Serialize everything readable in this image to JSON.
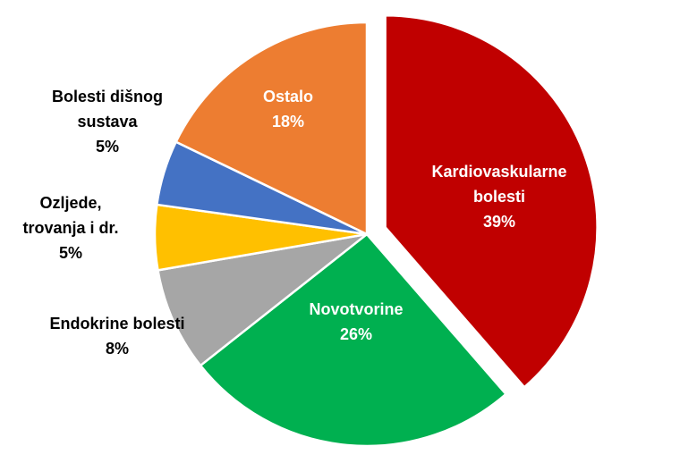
{
  "chart_data": {
    "type": "pie",
    "title": "",
    "slices": [
      {
        "label": "Kardiovaskularne bolesti",
        "value": 39,
        "percent_label": "39%",
        "color": "#C00000",
        "exploded": true
      },
      {
        "label": "Novotvorine",
        "value": 26,
        "percent_label": "26%",
        "color": "#00B050"
      },
      {
        "label": "Endokrine bolesti",
        "value": 8,
        "percent_label": "8%",
        "color": "#A6A6A6"
      },
      {
        "label": "Ozljede, trovanja i dr.",
        "value": 5,
        "percent_label": "5%",
        "color": "#FFC000"
      },
      {
        "label": "Bolesti dišnog sustava",
        "value": 5,
        "percent_label": "5%",
        "color": "#4472C4"
      },
      {
        "label": "Ostalo",
        "value": 18,
        "percent_label": "18%",
        "color": "#ED7D31"
      }
    ],
    "legend": "none",
    "labels": [
      {
        "lines": [
          "Kardiovaskularne",
          "bolesti",
          "39%"
        ],
        "color": "#ffffff",
        "placement": "inside"
      },
      {
        "lines": [
          "Novotvorine",
          "26%"
        ],
        "color": "#ffffff",
        "placement": "inside"
      },
      {
        "lines": [
          "Endokrine bolesti",
          "8%"
        ],
        "color": "#000000",
        "placement": "outside"
      },
      {
        "lines": [
          "Ozljede,",
          "trovanja i dr.",
          "5%"
        ],
        "color": "#000000",
        "placement": "outside"
      },
      {
        "lines": [
          "Bolesti dišnog",
          "sustava",
          "5%"
        ],
        "color": "#000000",
        "placement": "outside"
      },
      {
        "lines": [
          "Ostalo",
          "18%"
        ],
        "color": "#ffffff",
        "placement": "inside"
      }
    ]
  }
}
